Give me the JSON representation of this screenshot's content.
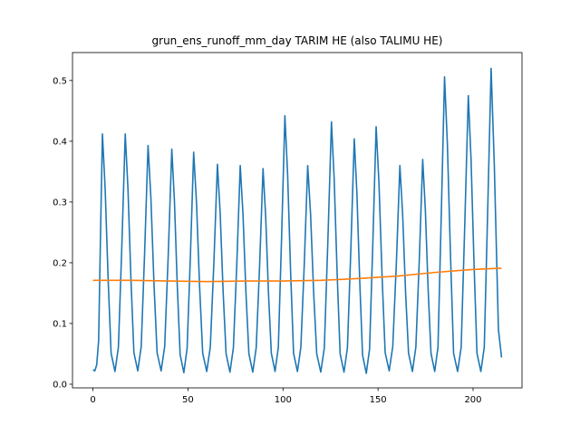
{
  "chart_data": {
    "type": "line",
    "title": "grun_ens_runoff_mm_day TARIM HE (also TALIMU HE)",
    "xlabel": "",
    "ylabel": "",
    "xlim": [
      -10.75,
      225.75
    ],
    "ylim": [
      -0.006,
      0.546
    ],
    "xticks": [
      0,
      50,
      100,
      150,
      200
    ],
    "xtick_labels": [
      "0",
      "50",
      "100",
      "150",
      "200"
    ],
    "yticks": [
      0.0,
      0.1,
      0.2,
      0.3,
      0.4,
      0.5
    ],
    "ytick_labels": [
      "0.0",
      "0.1",
      "0.2",
      "0.3",
      "0.4",
      "0.5"
    ],
    "grid": false,
    "legend": "none",
    "series": [
      {
        "color": "#1f77b4",
        "peaks": [
          {
            "x": 5,
            "y": 0.412
          },
          {
            "x": 17,
            "y": 0.412
          },
          {
            "x": 29,
            "y": 0.393
          },
          {
            "x": 41.5,
            "y": 0.387
          },
          {
            "x": 53,
            "y": 0.382
          },
          {
            "x": 65.5,
            "y": 0.362
          },
          {
            "x": 77.5,
            "y": 0.36
          },
          {
            "x": 89.5,
            "y": 0.355
          },
          {
            "x": 101,
            "y": 0.442
          },
          {
            "x": 113,
            "y": 0.36
          },
          {
            "x": 125.5,
            "y": 0.432
          },
          {
            "x": 137.5,
            "y": 0.404
          },
          {
            "x": 149,
            "y": 0.424
          },
          {
            "x": 161.5,
            "y": 0.36
          },
          {
            "x": 173.5,
            "y": 0.37
          },
          {
            "x": 185,
            "y": 0.506
          },
          {
            "x": 197.5,
            "y": 0.475
          },
          {
            "x": 209.5,
            "y": 0.52
          }
        ],
        "troughs": [
          0.022,
          0.021,
          0.022,
          0.022,
          0.019,
          0.021,
          0.02,
          0.02,
          0.021,
          0.021,
          0.02,
          0.02,
          0.018,
          0.022,
          0.021,
          0.021,
          0.021,
          0.021
        ],
        "x_end": 215,
        "y_end": 0.044
      },
      {
        "color": "#ff7f0e",
        "x": [
          0,
          20,
          40,
          60,
          80,
          100,
          120,
          140,
          160,
          180,
          200,
          215
        ],
        "y": [
          0.171,
          0.171,
          0.17,
          0.169,
          0.17,
          0.17,
          0.171,
          0.174,
          0.178,
          0.184,
          0.189,
          0.191
        ]
      }
    ]
  }
}
